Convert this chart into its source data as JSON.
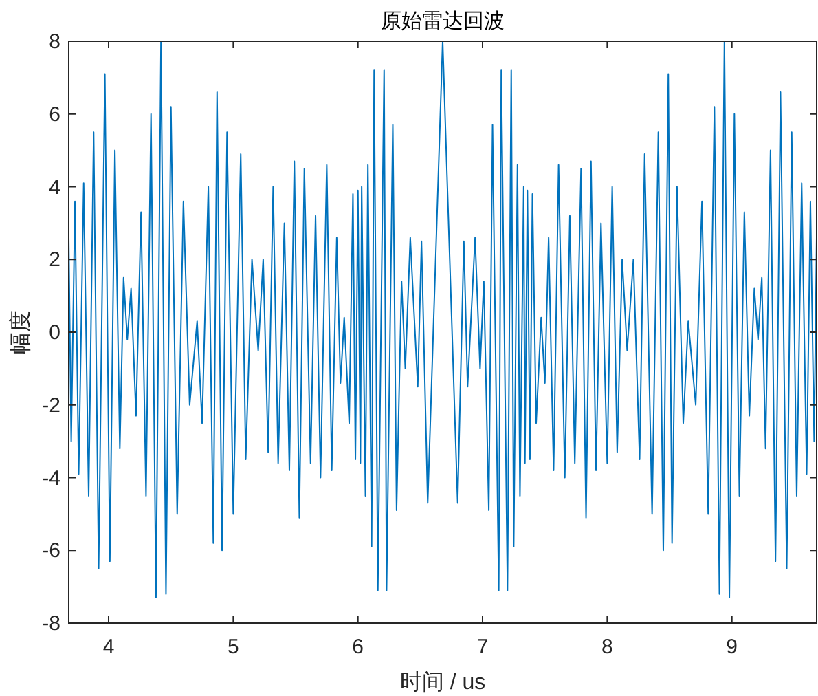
{
  "chart_data": {
    "type": "line",
    "title": "原始雷达回波",
    "xlabel": "时间 / us",
    "ylabel": "幅度",
    "xlim": [
      3.68,
      9.68
    ],
    "xticks": [
      4,
      5,
      6,
      7,
      8,
      9
    ],
    "ylim": [
      -8,
      8
    ],
    "yticks": [
      -8,
      -6,
      -4,
      -2,
      0,
      2,
      4,
      6,
      8
    ],
    "grid": false,
    "marker": "none",
    "line_style": "solid",
    "series": [
      {
        "color": "#0072bd",
        "x": [
          3.68,
          3.7,
          3.73,
          3.76,
          3.8,
          3.84,
          3.88,
          3.92,
          3.97,
          4.01,
          4.05,
          4.09,
          4.12,
          4.15,
          4.18,
          4.22,
          4.26,
          4.3,
          4.34,
          4.38,
          4.42,
          4.46,
          4.5,
          4.55,
          4.6,
          4.65,
          4.71,
          4.75,
          4.8,
          4.84,
          4.87,
          4.91,
          4.95,
          5.0,
          5.06,
          5.1,
          5.15,
          5.2,
          5.24,
          5.28,
          5.32,
          5.36,
          5.41,
          5.45,
          5.49,
          5.53,
          5.57,
          5.62,
          5.66,
          5.7,
          5.75,
          5.79,
          5.83,
          5.86,
          5.89,
          5.93,
          5.96,
          5.98,
          6.0,
          6.02,
          6.03,
          6.06,
          6.08,
          6.11,
          6.13,
          6.16,
          6.21,
          6.23,
          6.28,
          6.31,
          6.35,
          6.38,
          6.42,
          6.48,
          6.51,
          6.56,
          6.68,
          6.8,
          6.85,
          6.88,
          6.94,
          6.98,
          7.01,
          7.05,
          7.08,
          7.13,
          7.15,
          7.2,
          7.23,
          7.25,
          7.28,
          7.3,
          7.33,
          7.34,
          7.36,
          7.38,
          7.4,
          7.43,
          7.47,
          7.5,
          7.53,
          7.57,
          7.61,
          7.66,
          7.7,
          7.74,
          7.79,
          7.83,
          7.87,
          7.91,
          7.95,
          8.0,
          8.04,
          8.08,
          8.12,
          8.16,
          8.21,
          8.26,
          8.3,
          8.36,
          8.41,
          8.45,
          8.49,
          8.52,
          8.56,
          8.61,
          8.65,
          8.71,
          8.76,
          8.81,
          8.86,
          8.9,
          8.94,
          8.98,
          9.02,
          9.06,
          9.1,
          9.14,
          9.18,
          9.21,
          9.24,
          9.27,
          9.31,
          9.35,
          9.39,
          9.44,
          9.48,
          9.52,
          9.56,
          9.6,
          9.63,
          9.66,
          9.68
        ],
        "values": [
          2.6,
          -3.0,
          3.6,
          -3.9,
          4.1,
          -4.5,
          5.5,
          -6.5,
          7.1,
          -6.3,
          5.0,
          -3.2,
          1.5,
          -0.2,
          1.2,
          -2.3,
          3.3,
          -4.5,
          6.0,
          -7.3,
          8.0,
          -7.2,
          6.2,
          -5.0,
          3.6,
          -2.0,
          0.3,
          -2.5,
          4.0,
          -5.8,
          6.6,
          -6.0,
          5.5,
          -5.0,
          4.9,
          -3.5,
          2.0,
          -0.5,
          2.0,
          -3.3,
          4.0,
          -3.6,
          3.0,
          -3.8,
          4.7,
          -5.1,
          4.5,
          -3.6,
          3.2,
          -4.0,
          4.6,
          -3.8,
          2.6,
          -1.4,
          0.4,
          -2.5,
          3.8,
          -3.5,
          3.9,
          -3.6,
          4.0,
          -4.5,
          4.6,
          -5.9,
          7.2,
          -7.1,
          7.2,
          -7.1,
          5.7,
          -4.9,
          1.4,
          -1.0,
          2.6,
          -1.5,
          2.5,
          -4.7,
          8.0,
          -4.7,
          2.5,
          -1.5,
          2.6,
          -1.0,
          1.4,
          -4.9,
          5.7,
          -7.1,
          7.2,
          -7.1,
          7.2,
          -5.9,
          4.6,
          -4.5,
          4.0,
          -3.6,
          3.9,
          -3.5,
          3.8,
          -2.5,
          0.4,
          -1.4,
          2.6,
          -3.8,
          4.6,
          -4.0,
          3.2,
          -3.6,
          4.5,
          -5.1,
          4.7,
          -3.8,
          3.0,
          -3.6,
          4.0,
          -3.3,
          2.0,
          -0.5,
          2.0,
          -3.5,
          4.9,
          -5.0,
          5.5,
          -6.0,
          7.1,
          -5.8,
          4.0,
          -2.5,
          0.3,
          -2.0,
          3.6,
          -5.0,
          6.2,
          -7.2,
          8.0,
          -7.3,
          6.0,
          -4.5,
          3.3,
          -2.3,
          1.2,
          -0.2,
          1.5,
          -3.2,
          5.0,
          -6.3,
          6.6,
          -6.5,
          5.5,
          -4.5,
          4.1,
          -3.9,
          3.6,
          -3.0,
          2.6
        ]
      }
    ]
  }
}
